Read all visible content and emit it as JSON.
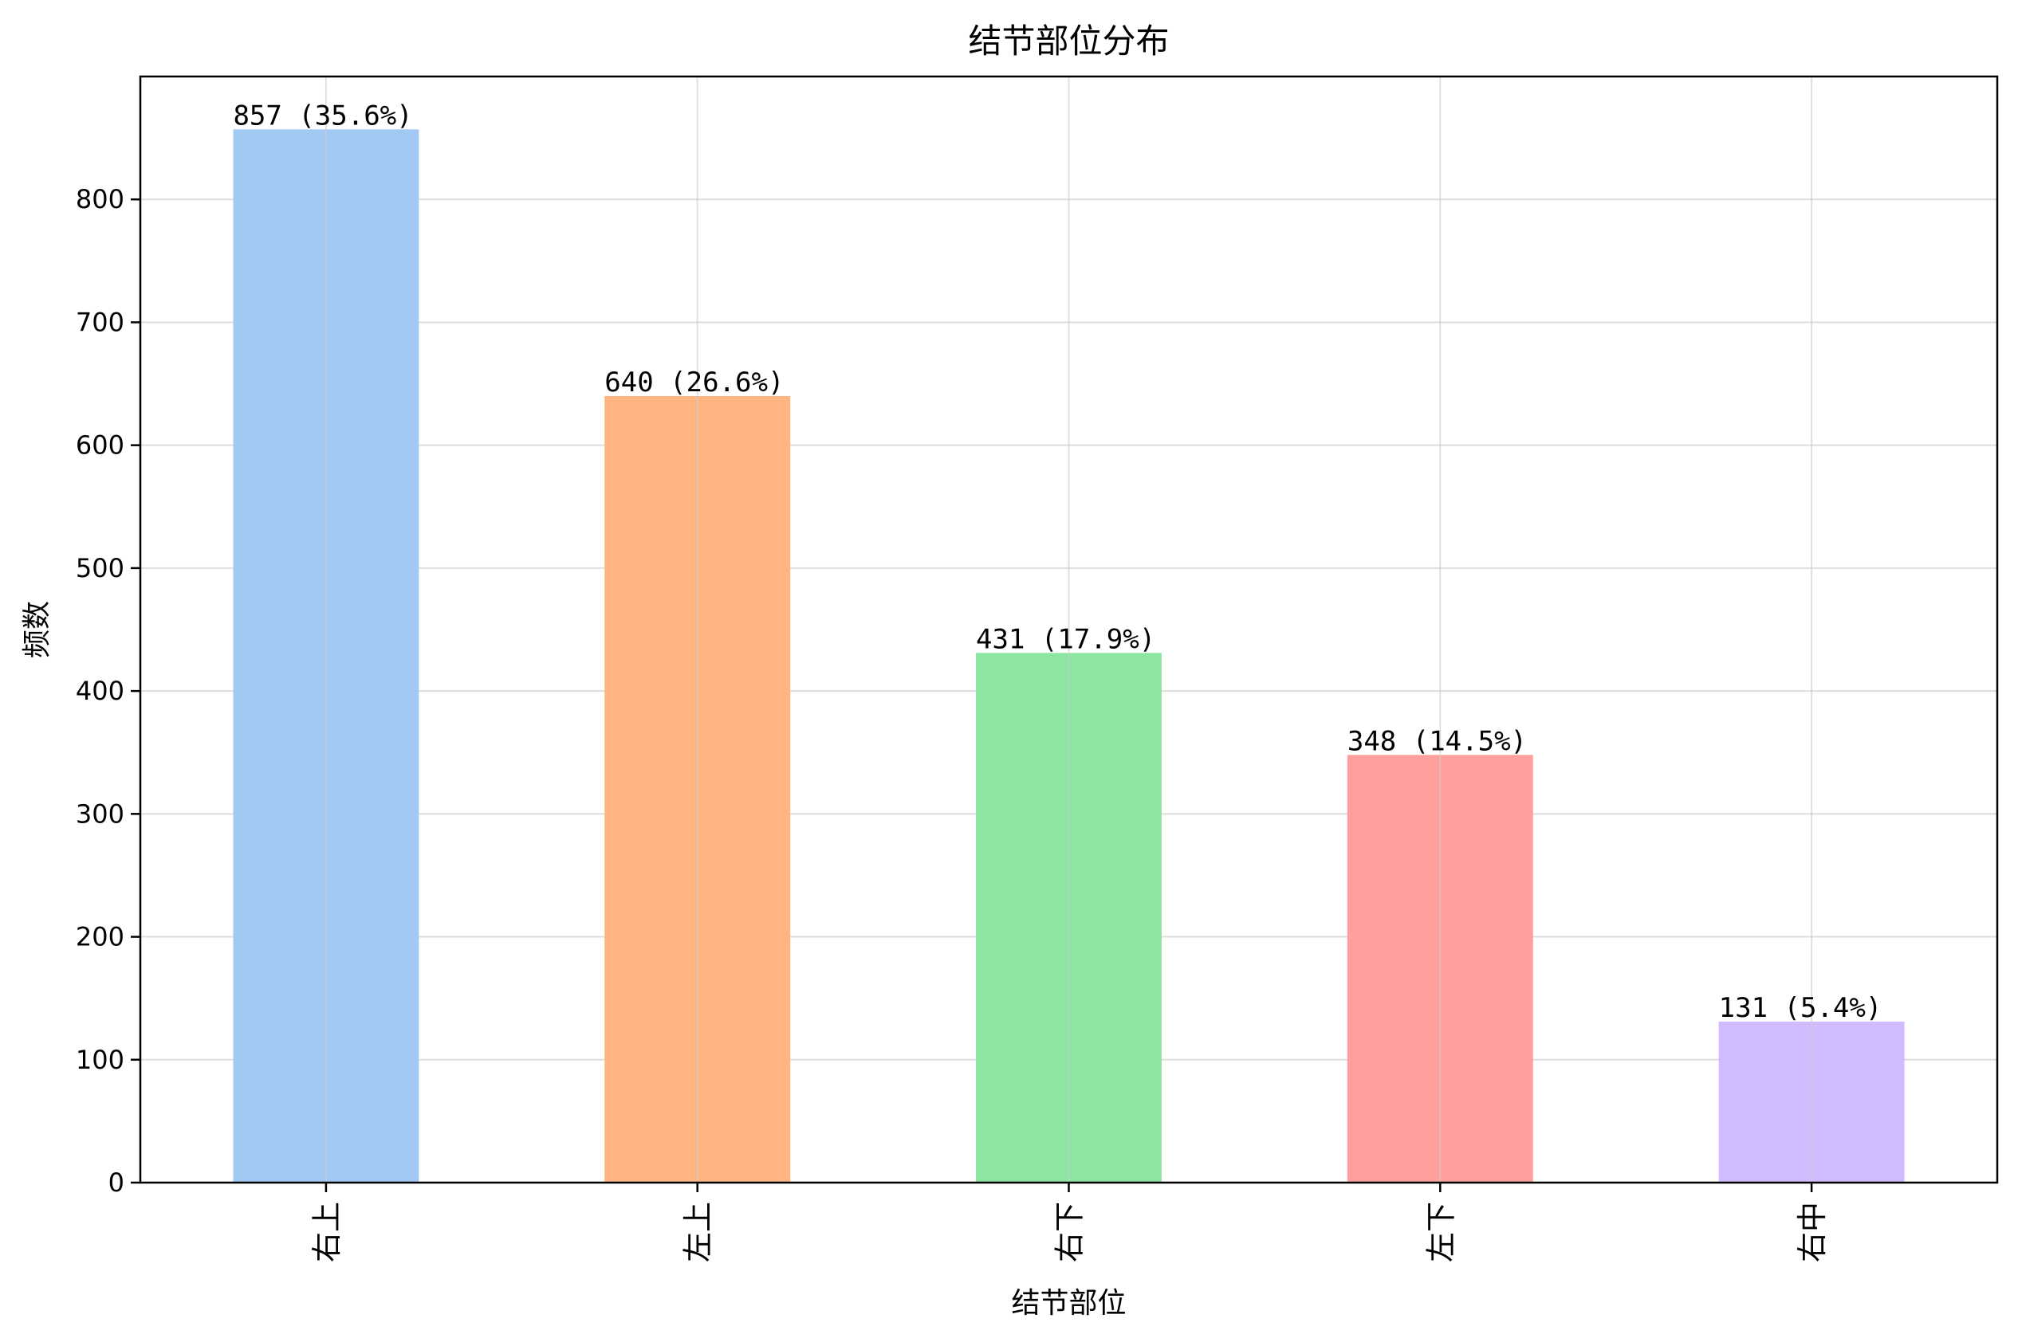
{
  "chart_data": {
    "type": "bar",
    "title": "结节部位分布",
    "xlabel": "结节部位",
    "ylabel": "频数",
    "categories": [
      "右上",
      "左上",
      "右下",
      "左下",
      "右中"
    ],
    "values": [
      857,
      640,
      431,
      348,
      131
    ],
    "bar_labels": [
      "857 (35.6%)",
      "640 (26.6%)",
      "431 (17.9%)",
      "348 (14.5%)",
      "131 (5.4%)"
    ],
    "colors": [
      "#a1c9f4",
      "#ffb482",
      "#8de5a1",
      "#ff9f9b",
      "#d0bbff"
    ],
    "ylim": [
      0,
      900
    ],
    "yticks": [
      0,
      100,
      200,
      300,
      400,
      500,
      600,
      700,
      800
    ],
    "grid": true,
    "legend": "none"
  }
}
